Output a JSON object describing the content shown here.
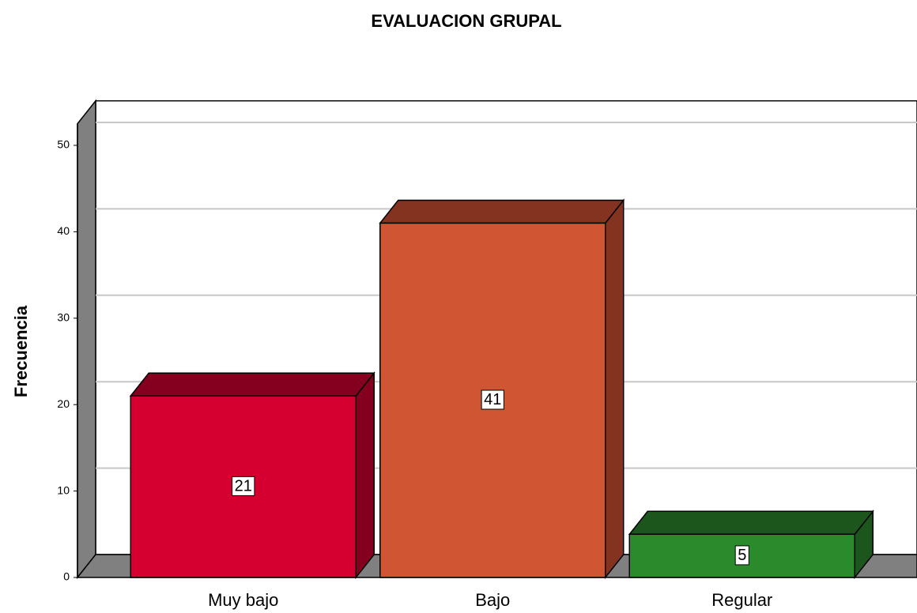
{
  "chart_data": {
    "type": "bar3d",
    "title": "EVALUACION  GRUPAL",
    "ylabel": "Frecuencia",
    "categories": [
      "Muy bajo",
      "Bajo",
      "Regular"
    ],
    "values": [
      21,
      41,
      5
    ],
    "colors": [
      "#d5002f",
      "#d05533",
      "#2b8a2b"
    ],
    "side_colors": [
      "#85001f",
      "#843321",
      "#1c561c"
    ],
    "ylim": [
      0,
      52.5
    ],
    "yticks": [
      0,
      10,
      20,
      30,
      40,
      50
    ],
    "grid": true
  }
}
